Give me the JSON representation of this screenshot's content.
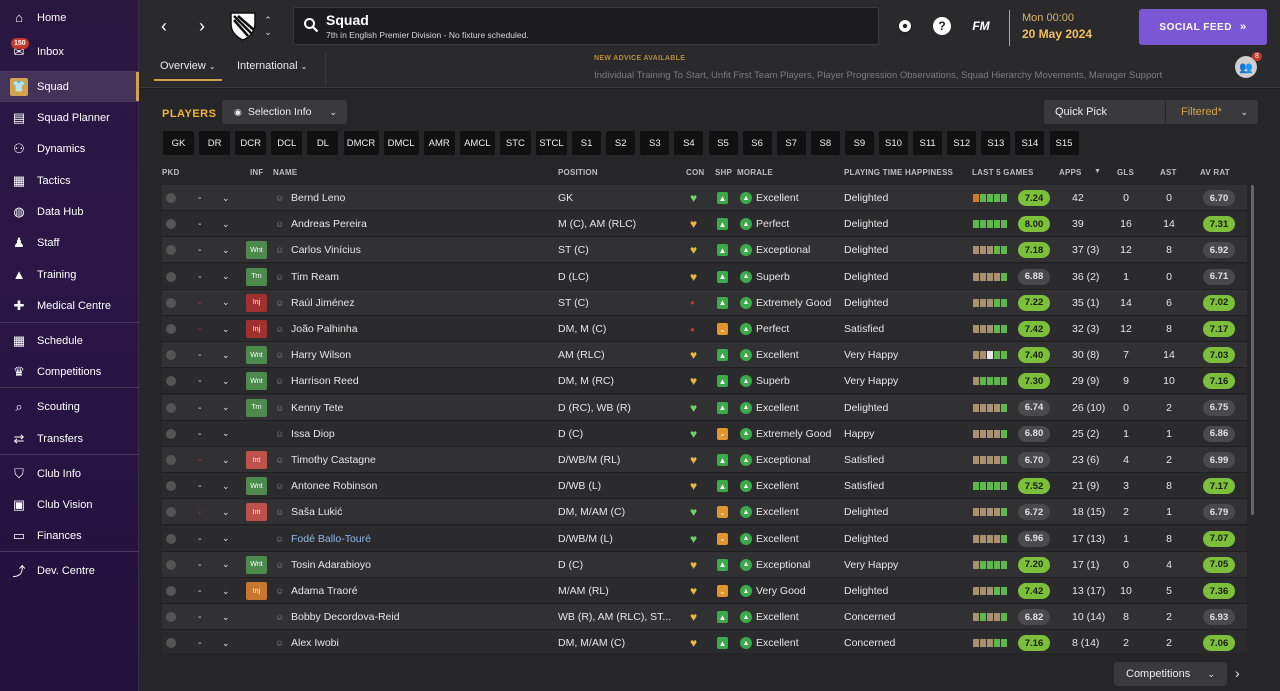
{
  "sidebar": {
    "items": [
      {
        "label": "Home",
        "icon": "home-icon"
      },
      {
        "label": "Inbox",
        "icon": "inbox-icon",
        "badge": "150"
      },
      {
        "label": "Squad",
        "icon": "shirt-icon"
      },
      {
        "label": "Squad Planner",
        "icon": "clipboard-icon"
      },
      {
        "label": "Dynamics",
        "icon": "dynamics-icon"
      },
      {
        "label": "Tactics",
        "icon": "tactics-board-icon"
      },
      {
        "label": "Data Hub",
        "icon": "data-hub-icon"
      },
      {
        "label": "Staff",
        "icon": "staff-icon"
      },
      {
        "label": "Training",
        "icon": "training-cone-icon"
      },
      {
        "label": "Medical Centre",
        "icon": "medical-kit-icon"
      },
      {
        "label": "Schedule",
        "icon": "calendar-icon"
      },
      {
        "label": "Competitions",
        "icon": "trophy-icon"
      },
      {
        "label": "Scouting",
        "icon": "magnifier-icon"
      },
      {
        "label": "Transfers",
        "icon": "transfer-arrows-icon"
      },
      {
        "label": "Club Info",
        "icon": "shield-icon"
      },
      {
        "label": "Club Vision",
        "icon": "briefcase-icon"
      },
      {
        "label": "Finances",
        "icon": "money-icon"
      },
      {
        "label": "Dev. Centre",
        "icon": "dev-chart-icon"
      }
    ]
  },
  "header": {
    "title": "Squad",
    "subtitle": "7th in English Premier Division - No fixture scheduled.",
    "fm_logo": "FM",
    "help": "?",
    "date_time": "Mon 00:00",
    "date_day": "20 May 2024",
    "social_feed": "SOCIAL FEED",
    "tabs": [
      "Overview",
      "International"
    ],
    "advice_title": "NEW ADVICE AVAILABLE",
    "advice_text": "Individual Training To Start, Unfit First Team Players, Player Progression Observations, Squad Hierarchy Movements, Manager Support",
    "manager_badge": "8"
  },
  "toolbar": {
    "players_label": "PLAYERS",
    "selection_info": "Selection Info",
    "quick_pick": "Quick Pick",
    "filtered": "Filtered*",
    "positions": [
      "GK",
      "DR",
      "DCR",
      "DCL",
      "DL",
      "DMCR",
      "DMCL",
      "AMR",
      "AMCL",
      "STC",
      "STCL",
      "S1",
      "S2",
      "S3",
      "S4",
      "S5",
      "S6",
      "S7",
      "S8",
      "S9",
      "S10",
      "S11",
      "S12",
      "S13",
      "S14",
      "S15"
    ]
  },
  "columns": {
    "pkd": "PKD",
    "inf": "INF",
    "name": "NAME",
    "position": "POSITION",
    "con": "CON",
    "shp": "SHP",
    "morale": "MORALE",
    "pth": "PLAYING TIME HAPPINESS",
    "last5": "LAST 5 GAMES",
    "apps": "APPS",
    "gls": "GLS",
    "ast": "AST",
    "avrat": "AV RAT"
  },
  "players": [
    {
      "name": "Bernd Leno",
      "inf": "",
      "position": "GK",
      "con": "green",
      "shp": "up",
      "morale": "Excellent",
      "pth": "Delighted",
      "form": [
        "o",
        "g",
        "g",
        "g",
        "g"
      ],
      "l5": "7.24",
      "l5c": "g",
      "apps": "42",
      "gls": "0",
      "ast": "0",
      "avr": "6.70",
      "avrc": "n",
      "dash_red": false,
      "link": false
    },
    {
      "name": "Andreas Pereira",
      "inf": "",
      "position": "M (C), AM (RLC)",
      "con": "gold",
      "shp": "up",
      "morale": "Perfect",
      "pth": "Delighted",
      "form": [
        "g",
        "g",
        "g",
        "g",
        "g"
      ],
      "l5": "8.00",
      "l5c": "g",
      "apps": "39",
      "gls": "16",
      "ast": "14",
      "avr": "7.31",
      "avrc": "g",
      "dash_red": false,
      "link": false
    },
    {
      "name": "Carlos Vinícius",
      "inf": "Wnt",
      "position": "ST (C)",
      "con": "gold",
      "shp": "up",
      "morale": "Exceptional",
      "pth": "Delighted",
      "form": [
        "b",
        "b",
        "b",
        "g",
        "g"
      ],
      "l5": "7.18",
      "l5c": "g",
      "apps": "37 (3)",
      "gls": "12",
      "ast": "8",
      "avr": "6.92",
      "avrc": "n",
      "dash_red": false,
      "link": false
    },
    {
      "name": "Tim Ream",
      "inf": "Trn",
      "position": "D (LC)",
      "con": "gold",
      "shp": "up",
      "morale": "Superb",
      "pth": "Delighted",
      "form": [
        "b",
        "b",
        "b",
        "b",
        "g"
      ],
      "l5": "6.88",
      "l5c": "n",
      "apps": "36 (2)",
      "gls": "1",
      "ast": "0",
      "avr": "6.71",
      "avrc": "n",
      "dash_red": false,
      "link": false
    },
    {
      "name": "Raúl Jiménez",
      "inf": "Inj",
      "position": "ST (C)",
      "con": "red",
      "shp": "up",
      "morale": "Extremely Good",
      "pth": "Delighted",
      "form": [
        "b",
        "b",
        "b",
        "g",
        "g"
      ],
      "l5": "7.22",
      "l5c": "g",
      "apps": "35 (1)",
      "gls": "14",
      "ast": "6",
      "avr": "7.02",
      "avrc": "g",
      "dash_red": true,
      "link": false
    },
    {
      "name": "João Palhinha",
      "inf": "Inj",
      "position": "DM, M (C)",
      "con": "red",
      "shp": "down",
      "morale": "Perfect",
      "pth": "Satisfied",
      "form": [
        "b",
        "b",
        "b",
        "g",
        "g"
      ],
      "l5": "7.42",
      "l5c": "g",
      "apps": "32 (3)",
      "gls": "12",
      "ast": "8",
      "avr": "7.17",
      "avrc": "g",
      "dash_red": true,
      "link": false
    },
    {
      "name": "Harry Wilson",
      "inf": "Wnt",
      "position": "AM (RLC)",
      "con": "gold",
      "shp": "up",
      "morale": "Excellent",
      "pth": "Very Happy",
      "form": [
        "b",
        "b",
        "w",
        "g",
        "g"
      ],
      "l5": "7.40",
      "l5c": "g",
      "apps": "30 (8)",
      "gls": "7",
      "ast": "14",
      "avr": "7.03",
      "avrc": "g",
      "dash_red": false,
      "link": false
    },
    {
      "name": "Harrison Reed",
      "inf": "Wnt",
      "position": "DM, M (RC)",
      "con": "gold",
      "shp": "up",
      "morale": "Superb",
      "pth": "Very Happy",
      "form": [
        "b",
        "g",
        "g",
        "g",
        "g"
      ],
      "l5": "7.30",
      "l5c": "g",
      "apps": "29 (9)",
      "gls": "9",
      "ast": "10",
      "avr": "7.16",
      "avrc": "g",
      "dash_red": false,
      "link": false
    },
    {
      "name": "Kenny Tete",
      "inf": "Trn",
      "position": "D (RC), WB (R)",
      "con": "green",
      "shp": "up",
      "morale": "Excellent",
      "pth": "Delighted",
      "form": [
        "b",
        "b",
        "b",
        "b",
        "g"
      ],
      "l5": "6.74",
      "l5c": "n",
      "apps": "26 (10)",
      "gls": "0",
      "ast": "2",
      "avr": "6.75",
      "avrc": "n",
      "dash_red": false,
      "link": false
    },
    {
      "name": "Issa Diop",
      "inf": "",
      "position": "D (C)",
      "con": "green",
      "shp": "down",
      "morale": "Extremely Good",
      "pth": "Happy",
      "form": [
        "b",
        "b",
        "b",
        "b",
        "g"
      ],
      "l5": "6.80",
      "l5c": "n",
      "apps": "25 (2)",
      "gls": "1",
      "ast": "1",
      "avr": "6.86",
      "avrc": "n",
      "dash_red": false,
      "link": false
    },
    {
      "name": "Timothy Castagne",
      "inf": "Int",
      "position": "D/WB/M (RL)",
      "con": "gold",
      "shp": "up",
      "morale": "Exceptional",
      "pth": "Satisfied",
      "form": [
        "b",
        "b",
        "b",
        "b",
        "g"
      ],
      "l5": "6.70",
      "l5c": "n",
      "apps": "23 (6)",
      "gls": "4",
      "ast": "2",
      "avr": "6.99",
      "avrc": "n",
      "dash_red": true,
      "link": false
    },
    {
      "name": "Antonee Robinson",
      "inf": "Wnt",
      "position": "D/WB (L)",
      "con": "gold",
      "shp": "up",
      "morale": "Excellent",
      "pth": "Satisfied",
      "form": [
        "g",
        "g",
        "g",
        "g",
        "g"
      ],
      "l5": "7.52",
      "l5c": "g",
      "apps": "21 (9)",
      "gls": "3",
      "ast": "8",
      "avr": "7.17",
      "avrc": "g",
      "dash_red": false,
      "link": false
    },
    {
      "name": "Saša Lukić",
      "inf": "Int",
      "position": "DM, M/AM (C)",
      "con": "green",
      "shp": "down",
      "morale": "Excellent",
      "pth": "Delighted",
      "form": [
        "b",
        "b",
        "b",
        "b",
        "g"
      ],
      "l5": "6.72",
      "l5c": "n",
      "apps": "18 (15)",
      "gls": "2",
      "ast": "1",
      "avr": "6.79",
      "avrc": "n",
      "dash_red": true,
      "link": false
    },
    {
      "name": "Fodé Ballo-Touré",
      "inf": "",
      "position": "D/WB/M (L)",
      "con": "green",
      "shp": "down",
      "morale": "Excellent",
      "pth": "Delighted",
      "form": [
        "b",
        "b",
        "b",
        "b",
        "g"
      ],
      "l5": "6.96",
      "l5c": "n",
      "apps": "17 (13)",
      "gls": "1",
      "ast": "8",
      "avr": "7.07",
      "avrc": "g",
      "dash_red": false,
      "link": true
    },
    {
      "name": "Tosin Adarabioyo",
      "inf": "Wnt",
      "position": "D (C)",
      "con": "gold",
      "shp": "up",
      "morale": "Exceptional",
      "pth": "Very Happy",
      "form": [
        "b",
        "g",
        "g",
        "g",
        "g"
      ],
      "l5": "7.20",
      "l5c": "g",
      "apps": "17 (1)",
      "gls": "0",
      "ast": "4",
      "avr": "7.05",
      "avrc": "g",
      "dash_red": false,
      "link": false
    },
    {
      "name": "Adama Traoré",
      "inf": "Inj",
      "position": "M/AM (RL)",
      "con": "gold",
      "shp": "down",
      "morale": "Very Good",
      "pth": "Delighted",
      "form": [
        "b",
        "b",
        "b",
        "g",
        "g"
      ],
      "l5": "7.42",
      "l5c": "g",
      "apps": "13 (17)",
      "gls": "10",
      "ast": "5",
      "avr": "7.36",
      "avrc": "g",
      "dash_red": false,
      "link": false,
      "inf_orange": true
    },
    {
      "name": "Bobby Decordova-Reid",
      "inf": "",
      "position": "WB (R), AM (RLC), ST...",
      "con": "gold",
      "shp": "up",
      "morale": "Excellent",
      "pth": "Concerned",
      "form": [
        "b",
        "g",
        "b",
        "b",
        "g"
      ],
      "l5": "6.82",
      "l5c": "n",
      "apps": "10 (14)",
      "gls": "8",
      "ast": "2",
      "avr": "6.93",
      "avrc": "n",
      "dash_red": false,
      "link": false
    },
    {
      "name": "Alex Iwobi",
      "inf": "",
      "position": "DM, M/AM (C)",
      "con": "gold",
      "shp": "up",
      "morale": "Excellent",
      "pth": "Concerned",
      "form": [
        "b",
        "b",
        "b",
        "g",
        "g"
      ],
      "l5": "7.16",
      "l5c": "g",
      "apps": "8 (14)",
      "gls": "2",
      "ast": "2",
      "avr": "7.06",
      "avrc": "g",
      "dash_red": false,
      "link": false
    }
  ],
  "footer": {
    "competitions": "Competitions"
  },
  "colors": {
    "accent": "#d4a24c",
    "social": "#7b57d6",
    "good": "#7cbf3a",
    "injury": "#a33030"
  }
}
